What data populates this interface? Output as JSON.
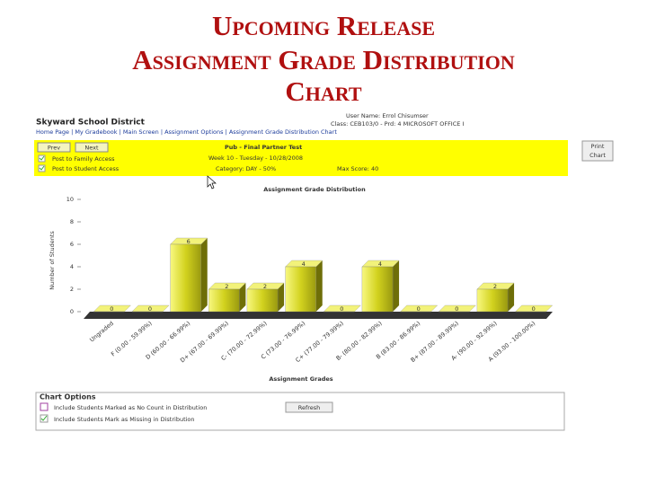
{
  "slide": {
    "title_lines": [
      "Upcoming Release",
      "Assignment Grade Distribution",
      "Chart"
    ]
  },
  "header": {
    "district": "Skyward School District",
    "user": "User Name: Errol Chisumser",
    "class": "Class: CEB103/0 - Prd: 4 MICROSOFT OFFICE I",
    "nav": "Home Page | My Gradebook | Main Screen | Assignment Options | Assignment Grade Distribution Chart"
  },
  "toolbar": {
    "prev": "Prev",
    "next": "Next",
    "options": [
      "Post to Family Access",
      "Post to Student Access"
    ],
    "assignment": "Pub - Final Partner Test",
    "date": "Week 10 - Tuesday - 10/28/2008",
    "category": "Category: DAY - 50%",
    "max_score": "Max Score: 40",
    "print": [
      "Print",
      "Chart"
    ]
  },
  "chart_data": {
    "type": "bar",
    "title": "Assignment Grade Distribution",
    "x_label": "Assignment Grades",
    "y_label": "Number of Students",
    "categories": [
      "Ungraded",
      "F (0.00 - 59.99%)",
      "D (60.00 - 66.99%)",
      "D+ (67.00 - 69.99%)",
      "C- (70.00 - 72.99%)",
      "C (73.00 - 76.99%)",
      "C+ (77.00 - 79.99%)",
      "B- (80.00 - 82.99%)",
      "B (83.00 - 86.99%)",
      "B+ (87.00 - 89.99%)",
      "A- (90.00 - 92.99%)",
      "A (93.00 - 100.00%)"
    ],
    "values": [
      0,
      0,
      6,
      2,
      2,
      4,
      0,
      4,
      0,
      0,
      2,
      0
    ],
    "color": "#d2d21e",
    "ylim": [
      0,
      10
    ],
    "yticks": [
      0,
      2,
      4,
      6,
      8,
      10
    ],
    "grid": false
  },
  "chart_options": {
    "title": "Chart Options",
    "items": [
      "Include Students Marked as No Count in Distribution",
      "Include Students Mark as Missing in Distribution"
    ],
    "refresh": "Refresh"
  }
}
